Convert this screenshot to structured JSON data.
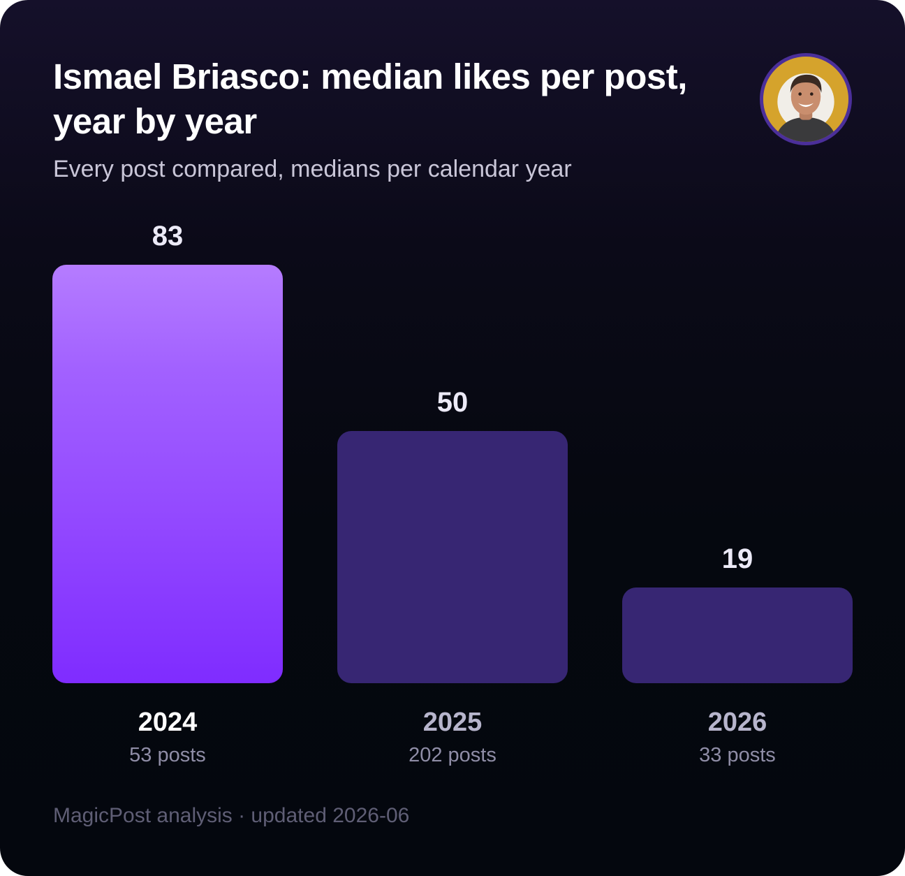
{
  "header": {
    "title": "Ismael Briasco: median likes per post, year by year",
    "subtitle": "Every post compared, medians per calendar year"
  },
  "avatar": {
    "icon": "profile-photo-icon",
    "ring_color": "#4b2f9a",
    "background_color": "#d5a32c"
  },
  "chart_data": {
    "type": "bar",
    "title": "Ismael Briasco: median likes per post, year by year",
    "subtitle": "Every post compared, medians per calendar year",
    "categories": [
      "2024",
      "2025",
      "2026"
    ],
    "values": [
      83,
      50,
      19
    ],
    "category_notes": [
      "53 posts",
      "202 posts",
      "33 posts"
    ],
    "highlight_index": 0,
    "xlabel": "",
    "ylabel": "",
    "ylim": [
      0,
      83
    ],
    "grid": false,
    "legend": "none",
    "colors": {
      "highlight_top": "#b57cff",
      "highlight_bottom": "#7f2cff",
      "muted": "#372673"
    }
  },
  "footer": {
    "source": "MagicPost analysis · updated 2026-06"
  }
}
